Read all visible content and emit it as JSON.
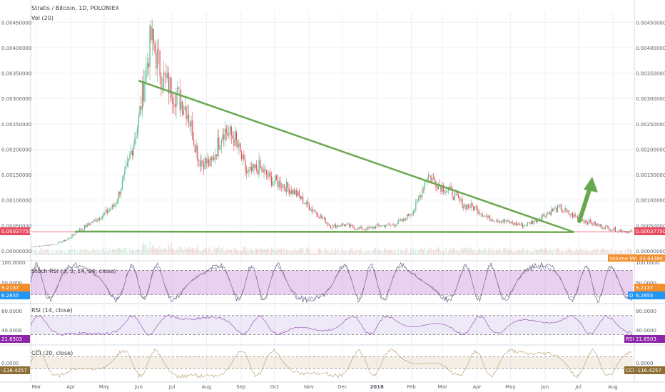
{
  "header": {
    "title": "Stratis / Bitcoin, 1D, POLONIEX",
    "volume_label": "Vol (20)",
    "volume_ma_label": "Volume MA",
    "volume_value": "43.6438K"
  },
  "colors": {
    "up": "#53b987",
    "down": "#eb4d5c",
    "trendline": "#6aa84f",
    "arrow": "#6aa84f",
    "price_line": "#e84a5f",
    "stoch_k": "#555555",
    "stoch_d": "#8b7dbf",
    "stoch_band": "#9c27b0",
    "rsi_band": "#b39ddb",
    "rsi_line": "#8e44ad",
    "cci_band": "#cdb88e",
    "cci_line": "#b49966",
    "grid": "#eef0f3"
  },
  "chart_data": [
    {
      "type": "candlestick",
      "title": "Stratis / Bitcoin, 1D, POLONIEX",
      "y_ticks": [
        "0.00450000",
        "0.00400000",
        "0.00350000",
        "0.00300000",
        "0.00250000",
        "0.00200000",
        "0.00150000",
        "0.00100000",
        "0.00050000",
        "0.00000000"
      ],
      "ylim": [
        0,
        0.0047
      ],
      "x_ticks": [
        "Mar",
        "Apr",
        "May",
        "Jun",
        "Jul",
        "Aug",
        "Sep",
        "Oct",
        "Nov",
        "Dec",
        "2018",
        "Feb",
        "Mar",
        "Apr",
        "May",
        "Jun",
        "Jul",
        "Aug"
      ],
      "last_price": "0.00037750",
      "closes": [
        8e-05,
        0.0001,
        0.00013,
        0.00022,
        0.0004,
        0.00055,
        0.0007,
        0.0009,
        0.0016,
        0.0026,
        0.0042,
        0.0034,
        0.0031,
        0.0028,
        0.0018,
        0.0017,
        0.0024,
        0.0022,
        0.0015,
        0.00165,
        0.0014,
        0.0013,
        0.00115,
        0.0009,
        0.0007,
        0.00048,
        0.00052,
        0.00045,
        0.00043,
        0.0005,
        0.0005,
        0.0006,
        0.00085,
        0.0015,
        0.0013,
        0.00115,
        0.0009,
        0.00085,
        0.00065,
        0.0006,
        0.00055,
        0.0005,
        0.0006,
        0.00075,
        0.00085,
        0.0007,
        0.0006,
        0.00052,
        0.00045,
        0.0004,
        0.00038
      ],
      "trendlines": [
        {
          "from": [
            "2017-06-01",
            0.00335
          ],
          "to": [
            "2018-06-27",
            0.00037
          ]
        },
        {
          "from": [
            "2017-04-05",
            0.00038
          ],
          "to": [
            "2018-06-27",
            0.00037
          ]
        }
      ],
      "annotation": "green up arrow"
    },
    {
      "type": "line",
      "title": "Stoch RSI (3, 3, 14, 14, close)",
      "y_ticks": [
        "100.0000",
        "50.0000"
      ],
      "ylim": [
        0,
        100
      ],
      "band": [
        20,
        80
      ],
      "series": [
        {
          "name": "K",
          "last_value": "9.2137"
        },
        {
          "name": "D",
          "last_value": "6.2855"
        }
      ]
    },
    {
      "type": "line",
      "title": "RSI (14, close)",
      "y_ticks": [
        "80.0000",
        "40.0000"
      ],
      "ylim": [
        10,
        95
      ],
      "band": [
        30,
        70
      ],
      "series": [
        {
          "name": "RSI",
          "last_value": "21.6503"
        }
      ]
    },
    {
      "type": "line",
      "title": "CCI (20, close)",
      "y_ticks": [
        "0.0000"
      ],
      "ylim": [
        -300,
        300
      ],
      "band": [
        -100,
        100
      ],
      "series": [
        {
          "name": "CCI",
          "last_value": "-116.4257"
        }
      ]
    }
  ]
}
